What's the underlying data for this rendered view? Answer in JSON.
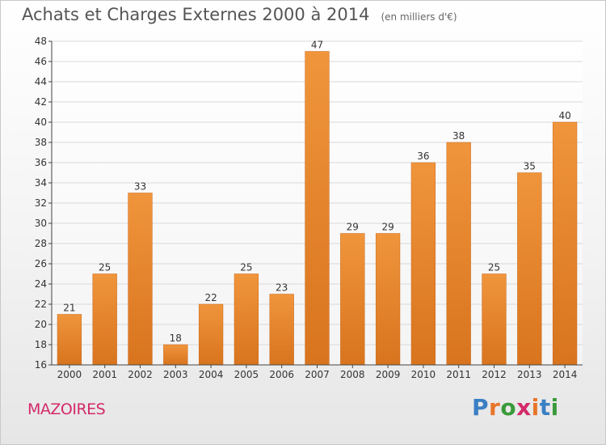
{
  "header": {
    "title": "Achats et Charges Externes 2000 à 2014",
    "subtitle": "(en milliers d'€)"
  },
  "footer": {
    "commune": "MAZOIRES",
    "logo_text": "Proxiti",
    "logo_colors": [
      "#3a7fc4",
      "#e8752a",
      "#3a9a3a",
      "#d42a6a",
      "#e8752a",
      "#3a7fc4",
      "#3a9a3a"
    ]
  },
  "chart_data": {
    "type": "bar",
    "title": "Achats et Charges Externes 2000 à 2014",
    "subtitle": "(en milliers d'€)",
    "categories": [
      "2000",
      "2001",
      "2002",
      "2003",
      "2004",
      "2005",
      "2006",
      "2007",
      "2008",
      "2009",
      "2010",
      "2011",
      "2012",
      "2013",
      "2014"
    ],
    "values": [
      21,
      25,
      33,
      18,
      22,
      25,
      23,
      47,
      29,
      29,
      36,
      38,
      25,
      35,
      40
    ],
    "ylim": [
      16,
      48
    ],
    "yticks": [
      16,
      18,
      20,
      22,
      24,
      26,
      28,
      30,
      32,
      34,
      36,
      38,
      40,
      42,
      44,
      46,
      48
    ],
    "xlabel": "",
    "ylabel": "",
    "grid": true,
    "data_labels": true,
    "bar_color": "#f0953c",
    "bar_color_dark": "#d8741e"
  }
}
